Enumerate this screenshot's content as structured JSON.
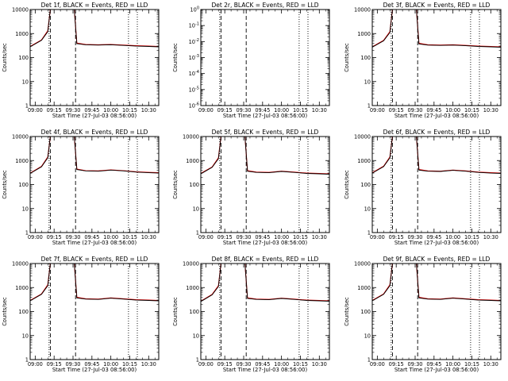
{
  "colors": {
    "events": "#000000",
    "lld": "#e00000",
    "background": "#ffffff",
    "axes": "#000000"
  },
  "common": {
    "xlabel": "Start Time (27-Jul-03 08:56:00)",
    "ylabel": "Counts/sec",
    "y_tick_labels": [
      "1",
      "10",
      "100",
      "1000",
      "10000"
    ],
    "y_tick_labels_small": [
      "10^-6",
      "10^-5",
      "10^-4",
      "10^-3",
      "10^-2",
      "10^-1",
      "10^0"
    ],
    "x_tick_labels": [
      "09:00",
      "09:15",
      "09:30",
      "09:45",
      "10:00",
      "10:15",
      "10:30"
    ]
  },
  "chart_data": [
    {
      "type": "line",
      "title": "Det 1f, BLACK = Events, RED = LLD",
      "ylabel": "Counts/sec",
      "xlabel": "Start Time (27-Jul-03 08:56:00)",
      "yscale": "log",
      "ylim": [
        1,
        10000
      ],
      "xlim": [
        "08:56",
        "10:38"
      ],
      "x_ticks": [
        "09:00",
        "09:15",
        "09:30",
        "09:45",
        "10:00",
        "10:15",
        "10:30"
      ],
      "vertical_lines": {
        "dashed": [
          "09:12",
          "09:32"
        ],
        "dotted": [
          "09:11",
          "10:14",
          "10:21"
        ]
      },
      "series": [
        {
          "name": "BLACK = Events",
          "color": "#000000",
          "x": [
            "08:56",
            "09:05",
            "09:10",
            "09:12",
            "09:31",
            "09:33",
            "09:40",
            "09:50",
            "10:00",
            "10:10",
            "10:20",
            "10:30",
            "10:38"
          ],
          "y": [
            280,
            520,
            1200,
            10000,
            10000,
            380,
            340,
            330,
            340,
            320,
            300,
            290,
            280
          ]
        },
        {
          "name": "RED = LLD",
          "color": "#e00000",
          "x": [
            "08:56",
            "09:05",
            "09:10",
            "09:12",
            "09:31",
            "09:33",
            "09:40",
            "09:50",
            "10:00",
            "10:10",
            "10:20",
            "10:30",
            "10:38"
          ],
          "y": [
            290,
            540,
            1300,
            10000,
            10000,
            400,
            350,
            340,
            350,
            330,
            310,
            300,
            290
          ]
        }
      ]
    },
    {
      "type": "line",
      "title": "Det 2r, BLACK = Events, RED = LLD",
      "ylabel": "Counts/sec",
      "xlabel": "Start Time (27-Jul-03 08:56:00)",
      "yscale": "log",
      "ylim": [
        1e-06,
        1
      ],
      "xlim": [
        "08:56",
        "10:38"
      ],
      "x_ticks": [
        "09:00",
        "09:15",
        "09:30",
        "09:45",
        "10:00",
        "10:15",
        "10:30"
      ],
      "vertical_lines": {
        "dashed": [
          "09:12",
          "09:32"
        ],
        "dotted": [
          "09:11",
          "10:14",
          "10:21"
        ]
      },
      "series": []
    },
    {
      "type": "line",
      "title": "Det 3f, BLACK = Events, RED = LLD",
      "ylabel": "Counts/sec",
      "xlabel": "Start Time (27-Jul-03 08:56:00)",
      "yscale": "log",
      "ylim": [
        1,
        10000
      ],
      "xlim": [
        "08:56",
        "10:38"
      ],
      "x_ticks": [
        "09:00",
        "09:15",
        "09:30",
        "09:45",
        "10:00",
        "10:15",
        "10:30"
      ],
      "vertical_lines": {
        "dashed": [
          "09:12",
          "09:32"
        ],
        "dotted": [
          "09:11",
          "10:14",
          "10:21"
        ]
      },
      "series": [
        {
          "name": "BLACK = Events",
          "color": "#000000",
          "x": [
            "08:56",
            "09:05",
            "09:10",
            "09:12",
            "09:31",
            "09:33",
            "09:40",
            "09:50",
            "10:00",
            "10:10",
            "10:20",
            "10:30",
            "10:38"
          ],
          "y": [
            270,
            500,
            1100,
            10000,
            10000,
            370,
            330,
            320,
            330,
            310,
            290,
            280,
            270
          ]
        },
        {
          "name": "RED = LLD",
          "color": "#e00000",
          "x": [
            "08:56",
            "09:05",
            "09:10",
            "09:12",
            "09:31",
            "09:33",
            "09:40",
            "09:50",
            "10:00",
            "10:10",
            "10:20",
            "10:30",
            "10:38"
          ],
          "y": [
            280,
            520,
            1200,
            10000,
            10000,
            390,
            340,
            330,
            340,
            320,
            300,
            290,
            280
          ]
        }
      ]
    },
    {
      "type": "line",
      "title": "Det 4f, BLACK = Events, RED = LLD",
      "ylabel": "Counts/sec",
      "xlabel": "Start Time (27-Jul-03 08:56:00)",
      "yscale": "log",
      "ylim": [
        1,
        10000
      ],
      "xlim": [
        "08:56",
        "10:38"
      ],
      "x_ticks": [
        "09:00",
        "09:15",
        "09:30",
        "09:45",
        "10:00",
        "10:15",
        "10:30"
      ],
      "vertical_lines": {
        "dashed": [
          "09:12",
          "09:32"
        ],
        "dotted": [
          "09:11",
          "10:14",
          "10:21"
        ]
      },
      "series": [
        {
          "name": "BLACK = Events",
          "color": "#000000",
          "x": [
            "08:56",
            "09:05",
            "09:10",
            "09:12",
            "09:31",
            "09:33",
            "09:40",
            "09:50",
            "10:00",
            "10:10",
            "10:20",
            "10:30",
            "10:38"
          ],
          "y": [
            290,
            550,
            1300,
            10000,
            10000,
            420,
            370,
            360,
            400,
            370,
            330,
            310,
            300
          ]
        },
        {
          "name": "RED = LLD",
          "color": "#e00000",
          "x": [
            "08:56",
            "09:05",
            "09:10",
            "09:12",
            "09:31",
            "09:33",
            "09:40",
            "09:50",
            "10:00",
            "10:10",
            "10:20",
            "10:30",
            "10:38"
          ],
          "y": [
            300,
            570,
            1400,
            10000,
            10000,
            440,
            380,
            370,
            410,
            380,
            340,
            320,
            310
          ]
        }
      ]
    },
    {
      "type": "line",
      "title": "Det 5f, BLACK = Events, RED = LLD",
      "ylabel": "Counts/sec",
      "xlabel": "Start Time (27-Jul-03 08:56:00)",
      "yscale": "log",
      "ylim": [
        1,
        10000
      ],
      "xlim": [
        "08:56",
        "10:38"
      ],
      "x_ticks": [
        "09:00",
        "09:15",
        "09:30",
        "09:45",
        "10:00",
        "10:15",
        "10:30"
      ],
      "vertical_lines": {
        "dashed": [
          "09:12",
          "09:32"
        ],
        "dotted": [
          "09:11",
          "10:14",
          "10:21"
        ]
      },
      "series": [
        {
          "name": "BLACK = Events",
          "color": "#000000",
          "x": [
            "08:56",
            "09:05",
            "09:10",
            "09:12",
            "09:31",
            "09:33",
            "09:40",
            "09:50",
            "10:00",
            "10:10",
            "10:20",
            "10:30",
            "10:38"
          ],
          "y": [
            280,
            520,
            1200,
            10000,
            10000,
            360,
            320,
            310,
            350,
            320,
            290,
            280,
            270
          ]
        },
        {
          "name": "RED = LLD",
          "color": "#e00000",
          "x": [
            "08:56",
            "09:05",
            "09:10",
            "09:12",
            "09:31",
            "09:33",
            "09:40",
            "09:50",
            "10:00",
            "10:10",
            "10:20",
            "10:30",
            "10:38"
          ],
          "y": [
            290,
            540,
            1300,
            10000,
            10000,
            380,
            330,
            320,
            360,
            330,
            300,
            290,
            280
          ]
        }
      ]
    },
    {
      "type": "line",
      "title": "Det 6f, BLACK = Events, RED = LLD",
      "ylabel": "Counts/sec",
      "xlabel": "Start Time (27-Jul-03 08:56:00)",
      "yscale": "log",
      "ylim": [
        1,
        10000
      ],
      "xlim": [
        "08:56",
        "10:38"
      ],
      "x_ticks": [
        "09:00",
        "09:15",
        "09:30",
        "09:45",
        "10:00",
        "10:15",
        "10:30"
      ],
      "vertical_lines": {
        "dashed": [
          "09:12",
          "09:32"
        ],
        "dotted": [
          "09:11",
          "10:14",
          "10:21"
        ]
      },
      "series": [
        {
          "name": "BLACK = Events",
          "color": "#000000",
          "x": [
            "08:56",
            "09:05",
            "09:10",
            "09:12",
            "09:31",
            "09:33",
            "09:40",
            "09:50",
            "10:00",
            "10:10",
            "10:20",
            "10:30",
            "10:38"
          ],
          "y": [
            300,
            560,
            1300,
            10000,
            10000,
            400,
            360,
            350,
            390,
            360,
            320,
            300,
            290
          ]
        },
        {
          "name": "RED = LLD",
          "color": "#e00000",
          "x": [
            "08:56",
            "09:05",
            "09:10",
            "09:12",
            "09:31",
            "09:33",
            "09:40",
            "09:50",
            "10:00",
            "10:10",
            "10:20",
            "10:30",
            "10:38"
          ],
          "y": [
            310,
            580,
            1400,
            10000,
            10000,
            420,
            370,
            360,
            400,
            370,
            330,
            310,
            300
          ]
        }
      ]
    },
    {
      "type": "line",
      "title": "Det 7f, BLACK = Events, RED = LLD",
      "ylabel": "Counts/sec",
      "xlabel": "Start Time (27-Jul-03 08:56:00)",
      "yscale": "log",
      "ylim": [
        1,
        10000
      ],
      "xlim": [
        "08:56",
        "10:38"
      ],
      "x_ticks": [
        "09:00",
        "09:15",
        "09:30",
        "09:45",
        "10:00",
        "10:15",
        "10:30"
      ],
      "vertical_lines": {
        "dashed": [
          "09:12",
          "09:32"
        ],
        "dotted": [
          "09:11",
          "10:14",
          "10:21"
        ]
      },
      "series": [
        {
          "name": "BLACK = Events",
          "color": "#000000",
          "x": [
            "08:56",
            "09:05",
            "09:10",
            "09:12",
            "09:31",
            "09:33",
            "09:40",
            "09:50",
            "10:00",
            "10:10",
            "10:20",
            "10:30",
            "10:38"
          ],
          "y": [
            280,
            520,
            1200,
            10000,
            10000,
            370,
            330,
            320,
            360,
            330,
            300,
            290,
            280
          ]
        },
        {
          "name": "RED = LLD",
          "color": "#e00000",
          "x": [
            "08:56",
            "09:05",
            "09:10",
            "09:12",
            "09:31",
            "09:33",
            "09:40",
            "09:50",
            "10:00",
            "10:10",
            "10:20",
            "10:30",
            "10:38"
          ],
          "y": [
            290,
            540,
            1300,
            10000,
            10000,
            390,
            340,
            330,
            370,
            340,
            310,
            300,
            290
          ]
        }
      ]
    },
    {
      "type": "line",
      "title": "Det 8f, BLACK = Events, RED = LLD",
      "ylabel": "Counts/sec",
      "xlabel": "Start Time (27-Jul-03 08:56:00)",
      "yscale": "log",
      "ylim": [
        1,
        10000
      ],
      "xlim": [
        "08:56",
        "10:38"
      ],
      "x_ticks": [
        "09:00",
        "09:15",
        "09:30",
        "09:45",
        "10:00",
        "10:15",
        "10:30"
      ],
      "vertical_lines": {
        "dashed": [
          "09:12",
          "09:32"
        ],
        "dotted": [
          "09:11",
          "10:14",
          "10:21"
        ]
      },
      "series": [
        {
          "name": "BLACK = Events",
          "color": "#000000",
          "x": [
            "08:56",
            "09:05",
            "09:10",
            "09:12",
            "09:31",
            "09:33",
            "09:40",
            "09:50",
            "10:00",
            "10:10",
            "10:20",
            "10:30",
            "10:38"
          ],
          "y": [
            260,
            500,
            1100,
            10000,
            10000,
            350,
            320,
            310,
            350,
            320,
            290,
            280,
            270
          ]
        },
        {
          "name": "RED = LLD",
          "color": "#e00000",
          "x": [
            "08:56",
            "09:05",
            "09:10",
            "09:12",
            "09:31",
            "09:33",
            "09:40",
            "09:50",
            "10:00",
            "10:10",
            "10:20",
            "10:30",
            "10:38"
          ],
          "y": [
            270,
            520,
            1200,
            10000,
            10000,
            370,
            330,
            320,
            360,
            330,
            300,
            290,
            280
          ]
        }
      ]
    },
    {
      "type": "line",
      "title": "Det 9f, BLACK = Events, RED = LLD",
      "ylabel": "Counts/sec",
      "xlabel": "Start Time (27-Jul-03 08:56:00)",
      "yscale": "log",
      "ylim": [
        1,
        10000
      ],
      "xlim": [
        "08:56",
        "10:38"
      ],
      "x_ticks": [
        "09:00",
        "09:15",
        "09:30",
        "09:45",
        "10:00",
        "10:15",
        "10:30"
      ],
      "vertical_lines": {
        "dashed": [
          "09:12",
          "09:32"
        ],
        "dotted": [
          "09:11",
          "10:14",
          "10:21"
        ]
      },
      "series": [
        {
          "name": "BLACK = Events",
          "color": "#000000",
          "x": [
            "08:56",
            "09:05",
            "09:10",
            "09:12",
            "09:31",
            "09:33",
            "09:40",
            "09:50",
            "10:00",
            "10:10",
            "10:20",
            "10:30",
            "10:38"
          ],
          "y": [
            280,
            520,
            1200,
            10000,
            10000,
            370,
            330,
            320,
            360,
            330,
            300,
            290,
            280
          ]
        },
        {
          "name": "RED = LLD",
          "color": "#e00000",
          "x": [
            "08:56",
            "09:05",
            "09:10",
            "09:12",
            "09:31",
            "09:33",
            "09:40",
            "09:50",
            "10:00",
            "10:10",
            "10:20",
            "10:30",
            "10:38"
          ],
          "y": [
            290,
            540,
            1300,
            10000,
            10000,
            390,
            340,
            330,
            370,
            340,
            310,
            300,
            290
          ]
        }
      ]
    }
  ]
}
